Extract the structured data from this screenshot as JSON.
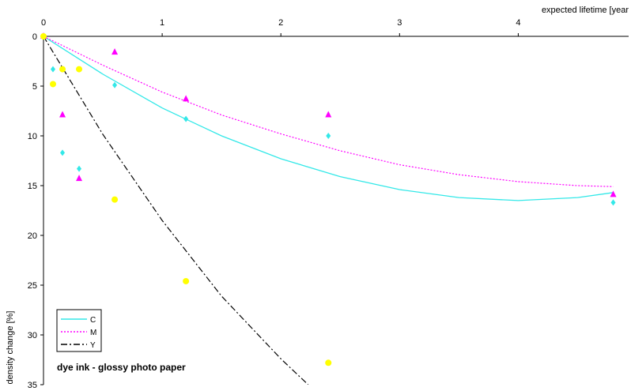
{
  "chart_data": {
    "type": "scatter",
    "title": "dye ink - glossy photo paper",
    "x_label": "expected lifetime [year",
    "y_label": "density change [%]",
    "xlim": [
      0,
      4.93
    ],
    "xticks": [
      0,
      1,
      2,
      3,
      4
    ],
    "ylim": [
      0,
      35
    ],
    "yticks": [
      0,
      5,
      10,
      15,
      20,
      25,
      30,
      35
    ],
    "y_reversed": true,
    "x_axis_position": "top",
    "legend": "bottom-left",
    "series": [
      {
        "name": "C",
        "color": "#33e8e8",
        "marker": "diamond",
        "line_color": "#33e8e8",
        "line_style": "solid",
        "x": [
          0,
          0.08,
          0.16,
          0.3,
          0.6,
          1.2,
          2.4,
          4.8
        ],
        "values": [
          0,
          3.3,
          11.7,
          13.3,
          4.9,
          8.3,
          10,
          16.7
        ],
        "trend_x": [
          0,
          0.5,
          1,
          1.5,
          2,
          2.5,
          3,
          3.5,
          4,
          4.5,
          4.8
        ],
        "trend_values": [
          0,
          3.8,
          7.2,
          10,
          12.3,
          14.1,
          15.4,
          16.2,
          16.5,
          16.2,
          15.7
        ]
      },
      {
        "name": "M",
        "color": "#ff00ff",
        "marker": "triangle",
        "line_color": "#ff00ff",
        "line_style": "dotted",
        "x": [
          0,
          0.16,
          0.3,
          0.6,
          1.2,
          2.4,
          4.8
        ],
        "values": [
          0,
          7.9,
          14.3,
          1.6,
          6.3,
          7.9,
          15.9
        ],
        "trend_x": [
          0,
          0.5,
          1,
          1.5,
          2,
          2.5,
          3,
          3.5,
          4,
          4.5,
          4.8
        ],
        "trend_values": [
          0,
          2.9,
          5.6,
          7.9,
          9.8,
          11.5,
          12.9,
          13.9,
          14.6,
          15,
          15.1
        ]
      },
      {
        "name": "Y",
        "color": "#ffff00",
        "marker": "circle",
        "line_color": "#000000",
        "line_style": "dashdot",
        "x": [
          0,
          0.08,
          0.16,
          0.3,
          0.6,
          1.2,
          2.4
        ],
        "values": [
          0,
          4.8,
          3.3,
          3.3,
          16.4,
          24.6,
          32.8
        ],
        "trend_x": [
          0,
          0.5,
          1,
          1.5,
          2,
          2.23
        ],
        "trend_values": [
          0,
          9.85,
          18.5,
          26.1,
          32.4,
          35
        ]
      }
    ]
  }
}
